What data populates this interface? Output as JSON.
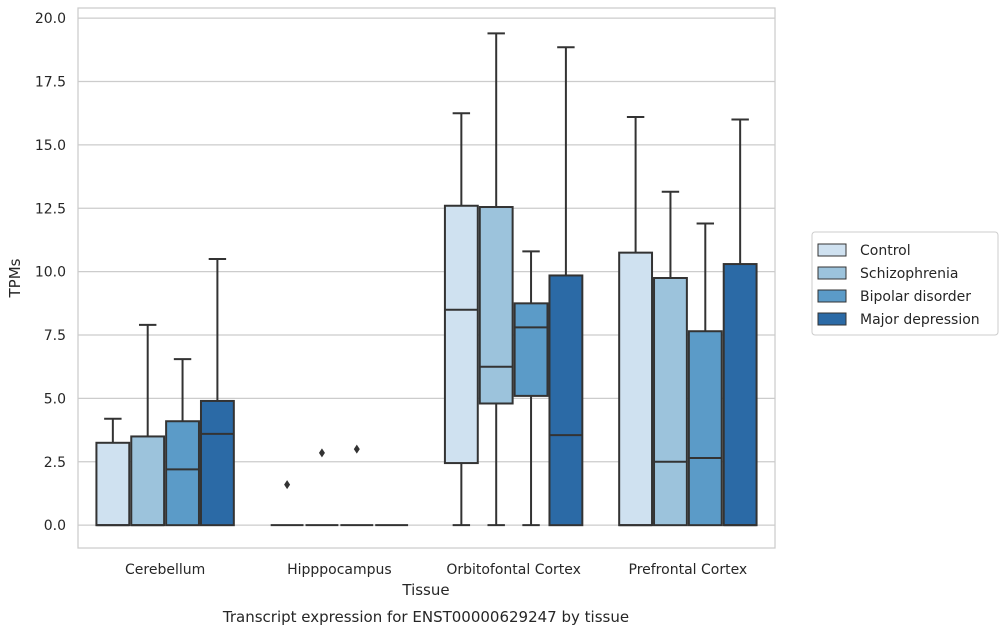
{
  "chart_data": {
    "type": "box",
    "xlabel": "Tissue",
    "ylabel": "TPMs",
    "caption": "Transcript expression for ENST00000629247 by tissue",
    "ylim": [
      -0.9,
      20.4
    ],
    "yticks": [
      0.0,
      2.5,
      5.0,
      7.5,
      10.0,
      12.5,
      15.0,
      17.5,
      20.0
    ],
    "ytick_labels": [
      "0.0",
      "2.5",
      "5.0",
      "7.5",
      "10.0",
      "12.5",
      "15.0",
      "17.5",
      "20.0"
    ],
    "grid": "horizontal",
    "legend_position": "right",
    "categories": [
      "Cerebellum",
      "Hipppocampus",
      "Orbitofontal Cortex",
      "Prefrontal Cortex"
    ],
    "series": [
      {
        "name": "Control",
        "color": "#cfe1f0",
        "boxes": [
          {
            "low": 0.0,
            "q1": 0.0,
            "median": 0.0,
            "q3": 3.25,
            "high": 4.2,
            "outliers": []
          },
          {
            "low": 0.0,
            "q1": 0.0,
            "median": 0.0,
            "q3": 0.0,
            "high": 0.0,
            "outliers": [
              1.6
            ]
          },
          {
            "low": 0.0,
            "q1": 2.45,
            "median": 8.5,
            "q3": 12.6,
            "high": 16.25,
            "outliers": []
          },
          {
            "low": 0.0,
            "q1": 0.0,
            "median": 0.0,
            "q3": 10.75,
            "high": 16.1,
            "outliers": []
          }
        ]
      },
      {
        "name": "Schizophrenia",
        "color": "#9cc3dc",
        "boxes": [
          {
            "low": 0.0,
            "q1": 0.0,
            "median": 0.0,
            "q3": 3.5,
            "high": 7.9,
            "outliers": []
          },
          {
            "low": 0.0,
            "q1": 0.0,
            "median": 0.0,
            "q3": 0.0,
            "high": 0.0,
            "outliers": [
              2.85
            ]
          },
          {
            "low": 0.0,
            "q1": 4.8,
            "median": 6.25,
            "q3": 12.55,
            "high": 19.4,
            "outliers": []
          },
          {
            "low": 0.0,
            "q1": 0.0,
            "median": 2.5,
            "q3": 9.75,
            "high": 13.15,
            "outliers": []
          }
        ]
      },
      {
        "name": "Bipolar disorder",
        "color": "#5b9bc8",
        "boxes": [
          {
            "low": 0.0,
            "q1": 0.0,
            "median": 2.2,
            "q3": 4.1,
            "high": 6.55,
            "outliers": []
          },
          {
            "low": 0.0,
            "q1": 0.0,
            "median": 0.0,
            "q3": 0.0,
            "high": 0.0,
            "outliers": [
              3.0
            ]
          },
          {
            "low": 0.0,
            "q1": 5.1,
            "median": 7.8,
            "q3": 8.75,
            "high": 10.8,
            "outliers": []
          },
          {
            "low": 0.0,
            "q1": 0.0,
            "median": 2.65,
            "q3": 7.65,
            "high": 11.9,
            "outliers": []
          }
        ]
      },
      {
        "name": "Major depression",
        "color": "#2b6aa6",
        "boxes": [
          {
            "low": 0.0,
            "q1": 0.0,
            "median": 3.6,
            "q3": 4.9,
            "high": 10.5,
            "outliers": []
          },
          {
            "low": 0.0,
            "q1": 0.0,
            "median": 0.0,
            "q3": 0.0,
            "high": 0.0,
            "outliers": []
          },
          {
            "low": 0.0,
            "q1": 0.0,
            "median": 3.55,
            "q3": 9.85,
            "high": 18.85,
            "outliers": []
          },
          {
            "low": 0.0,
            "q1": 0.0,
            "median": 0.0,
            "q3": 10.3,
            "high": 16.0,
            "outliers": []
          }
        ]
      }
    ]
  }
}
